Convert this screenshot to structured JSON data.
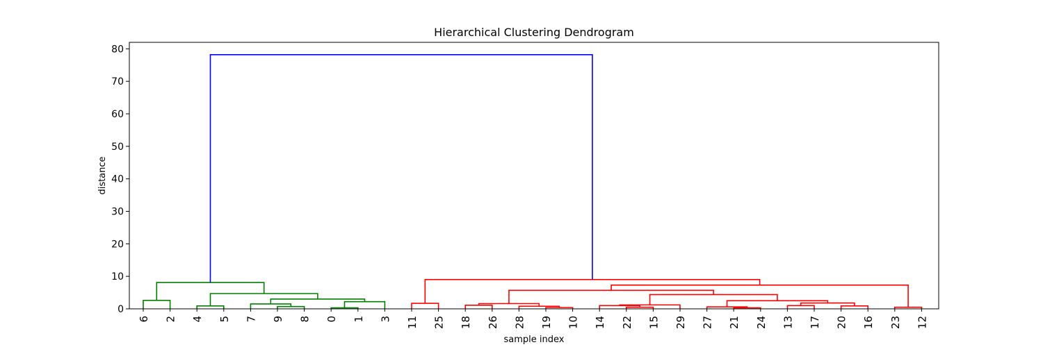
{
  "chart_data": {
    "type": "dendrogram",
    "title": "Hierarchical Clustering Dendrogram",
    "xlabel": "sample index",
    "ylabel": "distance",
    "ylim": [
      0,
      82
    ],
    "yticks": [
      0,
      10,
      20,
      30,
      40,
      50,
      60,
      70,
      80
    ],
    "leaf_order": [
      "6",
      "2",
      "4",
      "5",
      "7",
      "9",
      "8",
      "0",
      "1",
      "3",
      "11",
      "25",
      "18",
      "26",
      "28",
      "19",
      "10",
      "14",
      "22",
      "15",
      "29",
      "27",
      "21",
      "24",
      "13",
      "17",
      "20",
      "16",
      "23",
      "12"
    ],
    "merges": [
      {
        "left": "0",
        "right": "1",
        "height": 0.3
      },
      {
        "left": "21",
        "right": "24",
        "height": 0.3
      },
      {
        "left": "19",
        "right": "10",
        "height": 0.4
      },
      {
        "left": "22",
        "right": "15",
        "height": 0.5
      },
      {
        "left": "27",
        "right": "21+24",
        "height": 0.6
      },
      {
        "left": "9",
        "right": "8",
        "height": 0.7
      },
      {
        "left": "23",
        "right": "12",
        "height": 0.5
      },
      {
        "left": "28",
        "right": "19+10",
        "height": 0.8
      },
      {
        "left": "4",
        "right": "5",
        "height": 0.9
      },
      {
        "left": "20",
        "right": "16",
        "height": 0.9
      },
      {
        "left": "13",
        "right": "17",
        "height": 1.0
      },
      {
        "left": "18",
        "right": "26",
        "height": 1.1
      },
      {
        "left": "14",
        "right": "22+15",
        "height": 1.0
      },
      {
        "left": "14+22+15",
        "right": "29",
        "height": 1.2
      },
      {
        "left": "7",
        "right": "9+8",
        "height": 1.5
      },
      {
        "left": "11",
        "right": "25",
        "height": 1.7
      },
      {
        "left": "18+26",
        "right": "28+19+10",
        "height": 1.6
      },
      {
        "left": "13+17",
        "right": "20+16",
        "height": 1.8
      },
      {
        "left": "0+1",
        "right": "3",
        "height": 2.2
      },
      {
        "left": "27+21+24",
        "right": "13+17+20+16",
        "height": 2.5
      },
      {
        "left": "6",
        "right": "2",
        "height": 2.6
      },
      {
        "left": "7+9+8",
        "right": "0+1+3",
        "height": 3.0
      },
      {
        "left": "14+22+15+29",
        "right": "27+21+24+13+17+20+16",
        "height": 4.4
      },
      {
        "left": "4+5",
        "right": "7+9+8+0+1+3",
        "height": 4.7
      },
      {
        "left": "18+26+28+19+10",
        "right": "14+22+15+29+27+21+24+13+17+20+16",
        "height": 5.7
      },
      {
        "left": "18..16",
        "right": "23+12",
        "height": 7.3
      },
      {
        "left": "6+2",
        "right": "4..3",
        "height": 8.1
      },
      {
        "left": "11+25",
        "right": "18..12",
        "height": 9.0
      },
      {
        "left": "green-cluster",
        "right": "red-cluster",
        "height": 78.2
      }
    ],
    "colors": {
      "cluster_a": "#008000",
      "cluster_b": "#ff0000",
      "root": "#0000ff"
    },
    "grid": false,
    "legend": "none"
  }
}
